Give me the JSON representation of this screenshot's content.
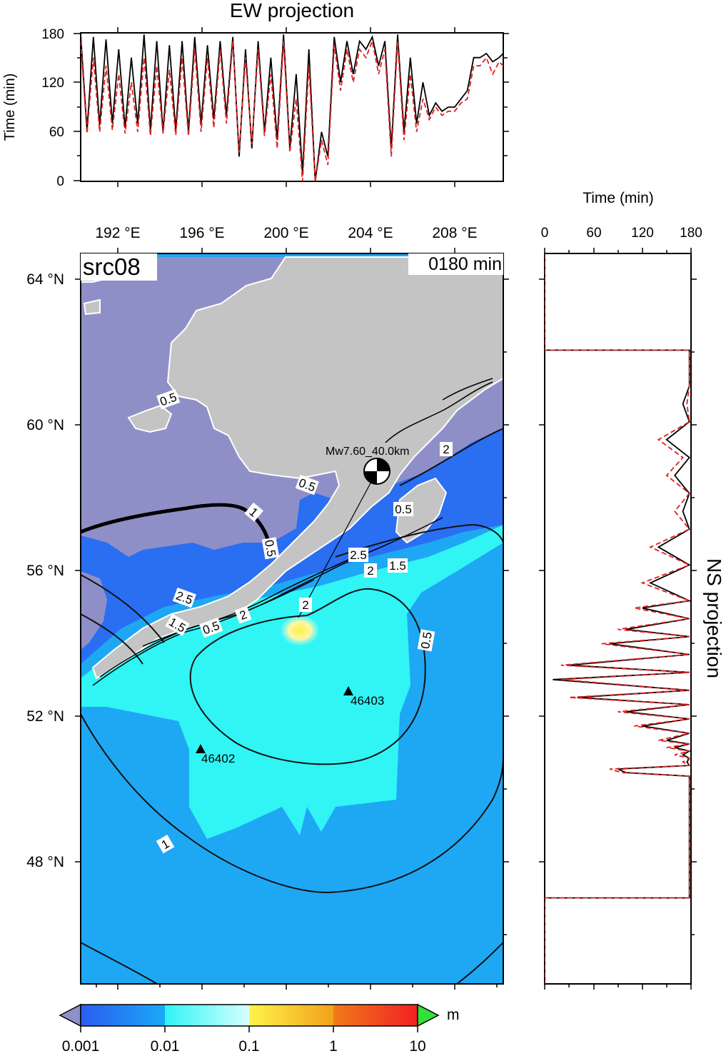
{
  "ew_panel": {
    "title": "EW projection",
    "ylabel": "Time (min)",
    "yticks": [
      "0",
      "60",
      "120",
      "180"
    ]
  },
  "ns_panel": {
    "title": "NS projection",
    "xlabel": "Time (min)",
    "xticks": [
      "0",
      "60",
      "120",
      "180"
    ]
  },
  "map": {
    "source_label": "src08",
    "time_label": "0180 min",
    "lon_ticks": [
      "192 °E",
      "196 °E",
      "200 °E",
      "204 °E",
      "208 °E"
    ],
    "lat_ticks": [
      "64 °N",
      "60 °N",
      "56 °N",
      "52 °N",
      "48 °N"
    ],
    "event_label": "Mw7.60_40.0km",
    "stations": [
      "46403",
      "46402"
    ],
    "contour_labels": [
      "0.5",
      "0.5",
      "0.5",
      "1",
      "0.5",
      "2.5",
      "2.5",
      "2",
      "1.5",
      "0.5",
      "2",
      "2",
      "1.5",
      "0.5",
      "2",
      "0.5",
      "1",
      "2.5",
      "0.5"
    ],
    "colors": {
      "land": "#c4c4c4",
      "shelf": "#8f8fc8",
      "deep_blue": "#2a6ef2",
      "ocean": "#1ea8f4",
      "cyan": "#31f4f4",
      "yellow": "#fff04a"
    }
  },
  "colorbar": {
    "ticks": [
      "0.001",
      "0.01",
      "0.1",
      "1",
      "10"
    ],
    "unit": "m",
    "colors": [
      "#2b5cf2",
      "#1aa9f6",
      "#30f4f6",
      "#bfffff",
      "#fff34a",
      "#f2a11a",
      "#f23a22",
      "#31e13a",
      "#9090c8"
    ]
  },
  "chart_data": [
    {
      "type": "line",
      "title": "EW projection",
      "xlabel": "",
      "ylabel": "Time (min)",
      "xlim": [
        190,
        210
      ],
      "ylim": [
        0,
        180
      ],
      "series": [
        {
          "color": "#000000",
          "style": "solid",
          "x": [
            190.0,
            190.3,
            190.6,
            190.9,
            191.2,
            191.5,
            191.8,
            192.1,
            192.4,
            192.7,
            193.0,
            193.3,
            193.6,
            193.9,
            194.2,
            194.5,
            194.8,
            195.1,
            195.4,
            195.7,
            196.0,
            196.3,
            196.6,
            196.9,
            197.2,
            197.5,
            197.8,
            198.1,
            198.4,
            198.7,
            199.0,
            199.3,
            199.6,
            199.9,
            200.2,
            200.5,
            200.8,
            201.1,
            201.4,
            201.7,
            202.0,
            202.3,
            202.6,
            202.9,
            203.2,
            203.5,
            203.8,
            204.1,
            204.4,
            204.7,
            205.0,
            205.3,
            205.6,
            205.9,
            206.2,
            206.5,
            206.8,
            207.1,
            207.4,
            207.7,
            208.0,
            208.3,
            208.6,
            208.9,
            209.2,
            209.5,
            209.8,
            210.0
          ],
          "y": [
            178,
            62,
            175,
            68,
            172,
            70,
            160,
            65,
            150,
            70,
            178,
            62,
            170,
            60,
            165,
            62,
            170,
            60,
            175,
            70,
            165,
            75,
            170,
            80,
            175,
            30,
            160,
            40,
            170,
            60,
            150,
            50,
            178,
            40,
            130,
            10,
            160,
            0,
            60,
            30,
            175,
            120,
            170,
            130,
            170,
            160,
            175,
            140,
            170,
            40,
            178,
            60,
            150,
            70,
            120,
            80,
            95,
            85,
            90,
            90,
            100,
            110,
            150,
            150,
            155,
            145,
            150,
            155
          ]
        },
        {
          "color": "#e02020",
          "style": "dashed",
          "x": [
            190.0,
            190.3,
            190.6,
            190.9,
            191.2,
            191.5,
            191.8,
            192.1,
            192.4,
            192.7,
            193.0,
            193.3,
            193.6,
            193.9,
            194.2,
            194.5,
            194.8,
            195.1,
            195.4,
            195.7,
            196.0,
            196.3,
            196.6,
            196.9,
            197.2,
            197.5,
            197.8,
            198.1,
            198.4,
            198.7,
            199.0,
            199.3,
            199.6,
            199.9,
            200.2,
            200.5,
            200.8,
            201.1,
            201.4,
            201.7,
            202.0,
            202.3,
            202.6,
            202.9,
            203.2,
            203.5,
            203.8,
            204.1,
            204.4,
            204.7,
            205.0,
            205.3,
            205.6,
            205.9,
            206.2,
            206.5,
            206.8,
            207.1,
            207.4,
            207.7,
            208.0,
            208.3,
            208.6,
            208.9,
            209.2,
            209.5,
            209.8,
            210.0
          ],
          "y": [
            170,
            58,
            150,
            60,
            140,
            62,
            130,
            58,
            120,
            60,
            150,
            55,
            140,
            58,
            135,
            56,
            150,
            55,
            160,
            60,
            150,
            65,
            160,
            70,
            170,
            35,
            150,
            45,
            160,
            55,
            130,
            40,
            170,
            35,
            100,
            0,
            140,
            0,
            50,
            20,
            165,
            110,
            160,
            120,
            160,
            150,
            170,
            130,
            160,
            30,
            170,
            50,
            130,
            60,
            100,
            75,
            90,
            80,
            85,
            85,
            95,
            100,
            140,
            140,
            150,
            130,
            145,
            140
          ]
        }
      ]
    },
    {
      "type": "line",
      "title": "NS projection",
      "xlabel": "Time (min)",
      "ylabel": "",
      "xlim": [
        0,
        180
      ],
      "ylim": [
        44.3,
        64.7
      ],
      "series": [
        {
          "color": "#000000",
          "style": "solid",
          "x": [
            0,
            0,
            178,
            178,
            170,
            178,
            150,
            178,
            160,
            178,
            170,
            178,
            140,
            178,
            130,
            178,
            120,
            178,
            100,
            178,
            80,
            178,
            30,
            178,
            10,
            178,
            40,
            178,
            100,
            178,
            120,
            178,
            150,
            178,
            160,
            178,
            170,
            178,
            175,
            178,
            90,
            100,
            178,
            178,
            178,
            0,
            0
          ],
          "y": [
            64.7,
            62.0,
            62.0,
            61.0,
            60.5,
            60.0,
            59.5,
            59.0,
            58.5,
            58.0,
            57.5,
            57.0,
            56.5,
            56.0,
            55.5,
            55.0,
            54.8,
            54.5,
            54.2,
            54.0,
            53.8,
            53.5,
            53.2,
            53.0,
            52.8,
            52.5,
            52.3,
            52.1,
            51.9,
            51.7,
            51.5,
            51.3,
            51.1,
            51.0,
            50.9,
            50.8,
            50.7,
            50.6,
            50.5,
            50.4,
            50.3,
            50.2,
            50.1,
            46.7,
            46.7,
            46.7,
            44.3
          ]
        },
        {
          "color": "#e02020",
          "style": "dashed",
          "x": [
            0,
            0,
            178,
            178,
            175,
            178,
            140,
            170,
            150,
            178,
            160,
            178,
            130,
            178,
            120,
            178,
            110,
            178,
            90,
            178,
            70,
            178,
            20,
            178,
            20,
            178,
            30,
            178,
            90,
            178,
            110,
            178,
            140,
            178,
            150,
            178,
            160,
            178,
            170,
            178,
            80,
            95,
            178,
            178,
            178,
            0,
            0
          ],
          "y": [
            64.7,
            62.0,
            62.0,
            61.0,
            60.5,
            60.0,
            59.5,
            59.0,
            58.5,
            58.0,
            57.5,
            57.0,
            56.5,
            56.0,
            55.5,
            55.0,
            54.8,
            54.5,
            54.2,
            54.0,
            53.8,
            53.5,
            53.2,
            53.0,
            52.8,
            52.5,
            52.3,
            52.1,
            51.9,
            51.7,
            51.5,
            51.3,
            51.1,
            51.0,
            50.9,
            50.8,
            50.7,
            50.6,
            50.5,
            50.4,
            50.3,
            50.2,
            50.1,
            46.7,
            46.7,
            46.7,
            44.3
          ]
        }
      ]
    }
  ]
}
